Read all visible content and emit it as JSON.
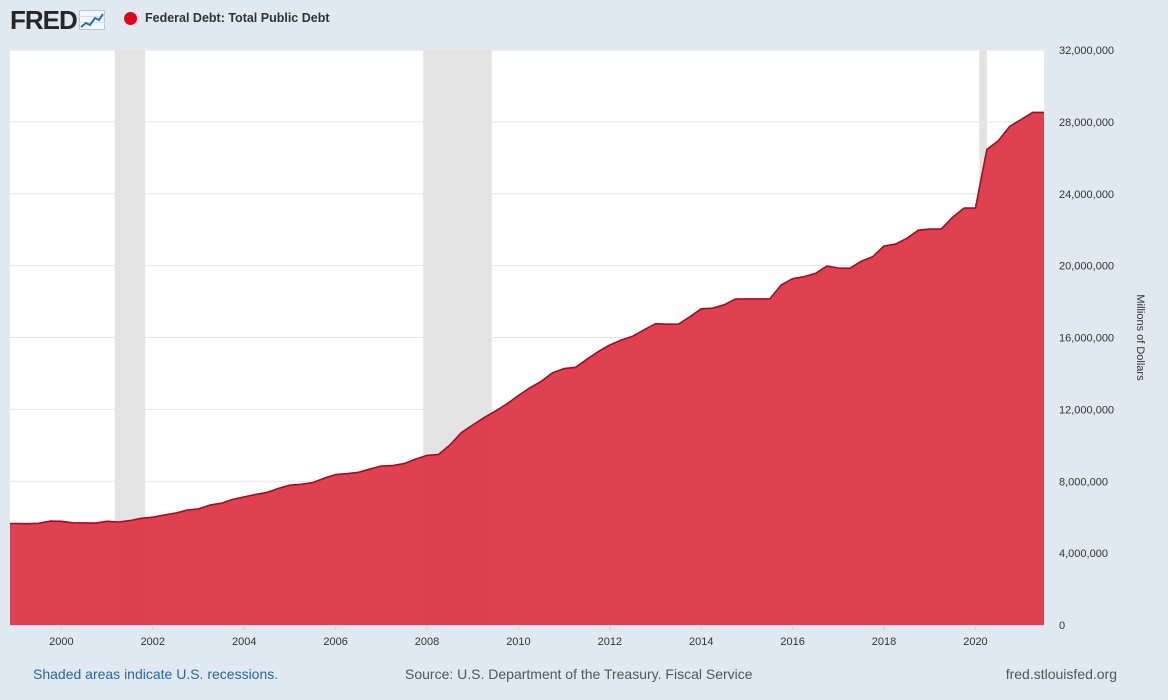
{
  "header": {
    "logo_text": "FRED",
    "series_label": "Federal Debt: Total Public Debt"
  },
  "footer": {
    "recession_note": "Shaded areas indicate U.S. recessions.",
    "source": "Source: U.S. Department of the Treasury. Fiscal Service",
    "site": "fred.stlouisfed.org"
  },
  "colors": {
    "series": "#e0051c",
    "fill": "#dc3b4c",
    "recession": "#e3e3e3",
    "background": "#e1e9f0"
  },
  "chart_data": {
    "type": "area",
    "title": "Federal Debt: Total Public Debt",
    "xlabel": "",
    "ylabel": "Millions of Dollars",
    "xlim": [
      1998.875,
      2021.5
    ],
    "ylim": [
      0,
      32000000
    ],
    "x_ticks": [
      "2000",
      "2002",
      "2004",
      "2006",
      "2008",
      "2010",
      "2012",
      "2014",
      "2016",
      "2018",
      "2020"
    ],
    "y_ticks": [
      "0",
      "4,000,000",
      "8,000,000",
      "12,000,000",
      "16,000,000",
      "20,000,000",
      "24,000,000",
      "28,000,000",
      "32,000,000"
    ],
    "grid": true,
    "recessions": [
      {
        "start": "2001-03",
        "end": "2001-11"
      },
      {
        "start": "2007-12",
        "end": "2009-06"
      },
      {
        "start": "2020-02",
        "end": "2020-04"
      }
    ],
    "series": [
      {
        "name": "Federal Debt: Total Public Debt",
        "x": [
          "1999-01-01",
          "1999-04-01",
          "1999-07-01",
          "1999-10-01",
          "2000-01-01",
          "2000-04-01",
          "2000-07-01",
          "2000-10-01",
          "2001-01-01",
          "2001-04-01",
          "2001-07-01",
          "2001-10-01",
          "2002-01-01",
          "2002-04-01",
          "2002-07-01",
          "2002-10-01",
          "2003-01-01",
          "2003-04-01",
          "2003-07-01",
          "2003-10-01",
          "2004-01-01",
          "2004-04-01",
          "2004-07-01",
          "2004-10-01",
          "2005-01-01",
          "2005-04-01",
          "2005-07-01",
          "2005-10-01",
          "2006-01-01",
          "2006-04-01",
          "2006-07-01",
          "2006-10-01",
          "2007-01-01",
          "2007-04-01",
          "2007-07-01",
          "2007-10-01",
          "2008-01-01",
          "2008-04-01",
          "2008-07-01",
          "2008-10-01",
          "2009-01-01",
          "2009-04-01",
          "2009-07-01",
          "2009-10-01",
          "2010-01-01",
          "2010-04-01",
          "2010-07-01",
          "2010-10-01",
          "2011-01-01",
          "2011-04-01",
          "2011-07-01",
          "2011-10-01",
          "2012-01-01",
          "2012-04-01",
          "2012-07-01",
          "2012-10-01",
          "2013-01-01",
          "2013-04-01",
          "2013-07-01",
          "2013-10-01",
          "2014-01-01",
          "2014-04-01",
          "2014-07-01",
          "2014-10-01",
          "2015-01-01",
          "2015-04-01",
          "2015-07-01",
          "2015-10-01",
          "2016-01-01",
          "2016-04-01",
          "2016-07-01",
          "2016-10-01",
          "2017-01-01",
          "2017-04-01",
          "2017-07-01",
          "2017-10-01",
          "2018-01-01",
          "2018-04-01",
          "2018-07-01",
          "2018-10-01",
          "2019-01-01",
          "2019-04-01",
          "2019-07-01",
          "2019-10-01",
          "2020-01-01",
          "2020-04-01",
          "2020-07-01",
          "2020-10-01",
          "2021-01-01",
          "2021-04-01"
        ],
        "values": [
          5650000,
          5640000,
          5660000,
          5780000,
          5770000,
          5690000,
          5680000,
          5670000,
          5770000,
          5730000,
          5810000,
          5940000,
          6000000,
          6120000,
          6230000,
          6400000,
          6460000,
          6670000,
          6780000,
          6990000,
          7130000,
          7270000,
          7380000,
          7600000,
          7780000,
          7830000,
          7930000,
          8170000,
          8370000,
          8420000,
          8500000,
          8680000,
          8850000,
          8870000,
          8980000,
          9230000,
          9440000,
          9490000,
          10020000,
          10700000,
          11130000,
          11540000,
          11910000,
          12310000,
          12770000,
          13200000,
          13560000,
          14040000,
          14270000,
          14340000,
          14790000,
          15220000,
          15580000,
          15860000,
          16070000,
          16430000,
          16770000,
          16740000,
          16740000,
          17150000,
          17600000,
          17630000,
          17820000,
          18140000,
          18150000,
          18150000,
          18150000,
          18920000,
          19270000,
          19390000,
          19570000,
          19980000,
          19870000,
          19850000,
          20240000,
          20490000,
          21090000,
          21200000,
          21520000,
          21970000,
          22030000,
          22030000,
          22690000,
          23200000,
          23200000,
          26470000,
          26950000,
          27750000,
          28130000,
          28530000
        ]
      }
    ]
  }
}
